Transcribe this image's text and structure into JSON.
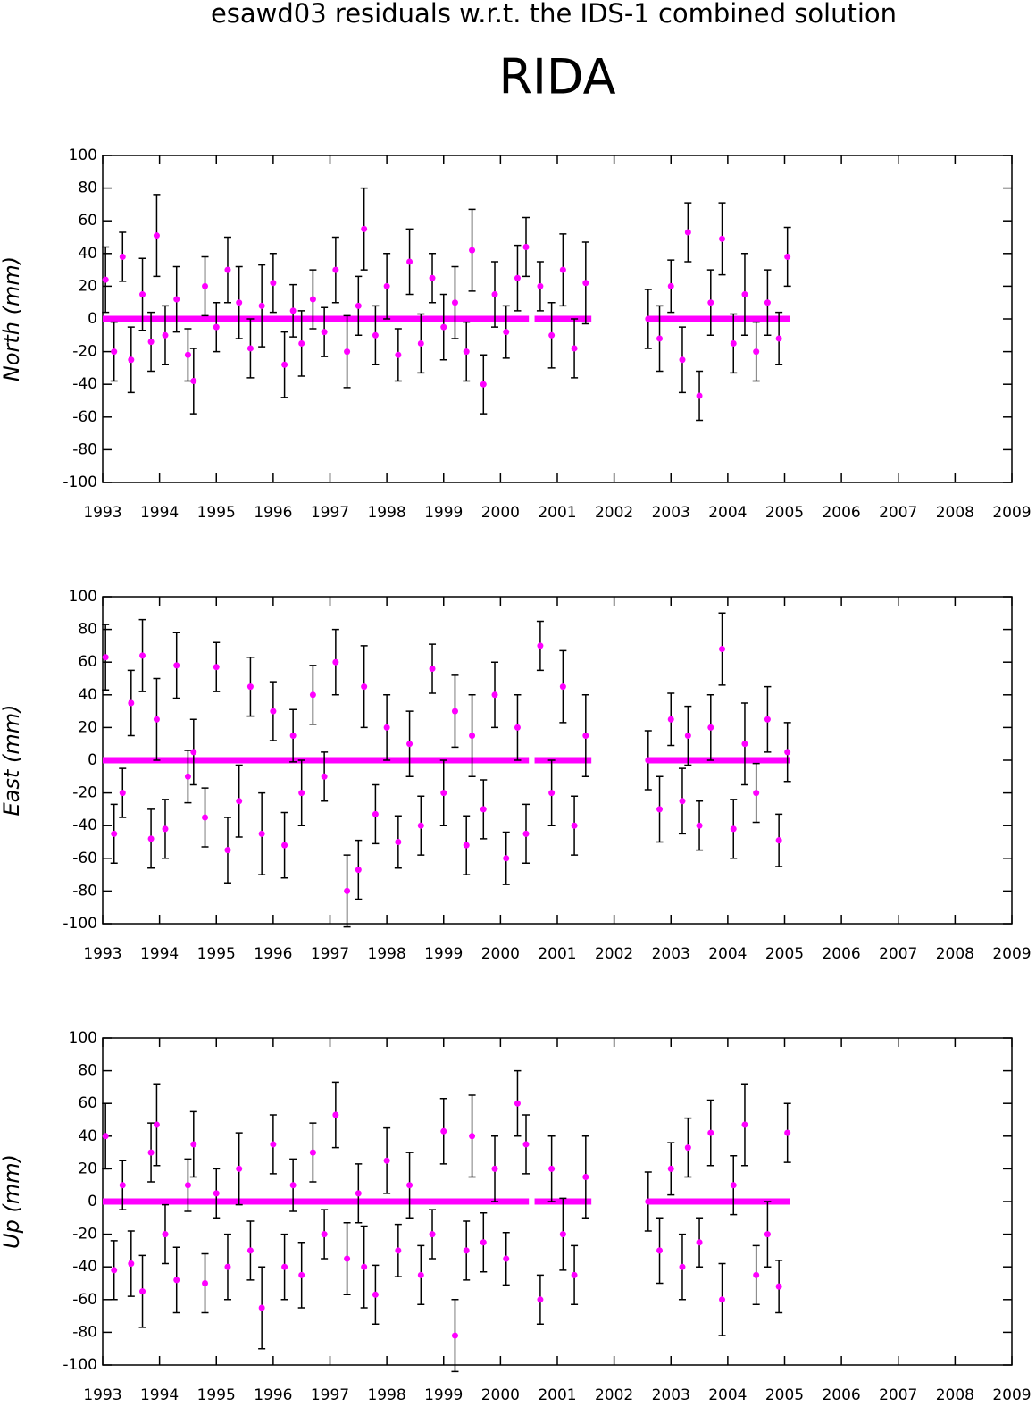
{
  "title": "esawd03 residuals w.r.t. the IDS-1 combined solution",
  "station": "RIDA",
  "chart_data": [
    {
      "type": "scatter",
      "ylabel": "North (mm)",
      "color": "#ff00ff",
      "errorcolor": "#000000",
      "x": [
        1993.05,
        1993.2,
        1993.35,
        1993.5,
        1993.7,
        1993.85,
        1993.95,
        1994.1,
        1994.3,
        1994.5,
        1994.6,
        1994.8,
        1995.0,
        1995.2,
        1995.4,
        1995.6,
        1995.8,
        1996.0,
        1996.2,
        1996.35,
        1996.5,
        1996.7,
        1996.9,
        1997.1,
        1997.3,
        1997.5,
        1997.6,
        1997.8,
        1998.0,
        1998.2,
        1998.4,
        1998.6,
        1998.8,
        1999.0,
        1999.2,
        1999.4,
        1999.5,
        1999.7,
        1999.9,
        2000.1,
        2000.3,
        2000.45,
        2000.7,
        2000.9,
        2001.1,
        2001.3,
        2001.5,
        2002.6,
        2002.8,
        2003.0,
        2003.2,
        2003.3,
        2003.5,
        2003.7,
        2003.9,
        2004.1,
        2004.3,
        2004.5,
        2004.7,
        2004.9,
        2005.05
      ],
      "values": [
        24,
        -20,
        38,
        -25,
        15,
        -14,
        51,
        -10,
        12,
        -22,
        -38,
        20,
        -5,
        30,
        10,
        -18,
        8,
        22,
        -28,
        5,
        -15,
        12,
        -8,
        30,
        -20,
        8,
        55,
        -10,
        20,
        -22,
        35,
        -15,
        25,
        -5,
        10,
        -20,
        42,
        -40,
        15,
        -8,
        25,
        44,
        20,
        -10,
        30,
        -18,
        22,
        0,
        -12,
        20,
        -25,
        53,
        -47,
        10,
        49,
        -15,
        15,
        -20,
        10,
        -12,
        38
      ],
      "errors": [
        20,
        18,
        15,
        20,
        22,
        18,
        25,
        18,
        20,
        16,
        20,
        18,
        15,
        20,
        22,
        18,
        25,
        18,
        20,
        16,
        20,
        18,
        15,
        20,
        22,
        18,
        25,
        18,
        20,
        16,
        20,
        18,
        15,
        20,
        22,
        18,
        25,
        18,
        20,
        16,
        20,
        18,
        15,
        20,
        22,
        18,
        25,
        18,
        20,
        16,
        20,
        18,
        15,
        20,
        22,
        18,
        25,
        18,
        20,
        16,
        18
      ],
      "baseline": {
        "x": [
          1993,
          2000.5,
          null,
          2000.6,
          2001.6,
          null,
          2002.6,
          2005.1
        ],
        "values": [
          0,
          0,
          null,
          0,
          0,
          null,
          0,
          0
        ]
      },
      "xlim": [
        1993,
        2009
      ],
      "xticks": [
        1993,
        1994,
        1995,
        1996,
        1997,
        1998,
        1999,
        2000,
        2001,
        2002,
        2003,
        2004,
        2005,
        2006,
        2007,
        2008,
        2009
      ],
      "ylim": [
        -100,
        100
      ],
      "yticks": [
        -100,
        -80,
        -60,
        -40,
        -20,
        0,
        20,
        40,
        60,
        80,
        100
      ]
    },
    {
      "type": "scatter",
      "ylabel": "East (mm)",
      "color": "#ff00ff",
      "errorcolor": "#000000",
      "x": [
        1993.05,
        1993.2,
        1993.35,
        1993.5,
        1993.7,
        1993.85,
        1993.95,
        1994.1,
        1994.3,
        1994.5,
        1994.6,
        1994.8,
        1995.0,
        1995.2,
        1995.4,
        1995.6,
        1995.8,
        1996.0,
        1996.2,
        1996.35,
        1996.5,
        1996.7,
        1996.9,
        1997.1,
        1997.3,
        1997.5,
        1997.6,
        1997.8,
        1998.0,
        1998.2,
        1998.4,
        1998.6,
        1998.8,
        1999.0,
        1999.2,
        1999.4,
        1999.5,
        1999.7,
        1999.9,
        2000.1,
        2000.3,
        2000.45,
        2000.7,
        2000.9,
        2001.1,
        2001.3,
        2001.5,
        2002.6,
        2002.8,
        2003.0,
        2003.2,
        2003.3,
        2003.5,
        2003.7,
        2003.9,
        2004.1,
        2004.3,
        2004.5,
        2004.7,
        2004.9,
        2005.05
      ],
      "values": [
        63,
        -45,
        -20,
        35,
        64,
        -48,
        25,
        -42,
        58,
        -10,
        5,
        -35,
        57,
        -55,
        -25,
        45,
        -45,
        30,
        -52,
        15,
        -20,
        40,
        -10,
        60,
        -80,
        -67,
        45,
        -33,
        20,
        -50,
        10,
        -40,
        56,
        -20,
        30,
        -52,
        15,
        -30,
        40,
        -60,
        20,
        -45,
        70,
        -20,
        45,
        -40,
        15,
        0,
        -30,
        25,
        -25,
        15,
        -40,
        20,
        68,
        -42,
        10,
        -20,
        25,
        -49,
        5
      ],
      "errors": [
        20,
        18,
        15,
        20,
        22,
        18,
        25,
        18,
        20,
        16,
        20,
        18,
        15,
        20,
        22,
        18,
        25,
        18,
        20,
        16,
        20,
        18,
        15,
        20,
        22,
        18,
        25,
        18,
        20,
        16,
        20,
        18,
        15,
        20,
        22,
        18,
        25,
        18,
        20,
        16,
        20,
        18,
        15,
        20,
        22,
        18,
        25,
        18,
        20,
        16,
        20,
        18,
        15,
        20,
        22,
        18,
        25,
        18,
        20,
        16,
        18
      ],
      "baseline": {
        "x": [
          1993,
          2000.5,
          null,
          2000.6,
          2001.6,
          null,
          2002.6,
          2005.1
        ],
        "values": [
          0,
          0,
          null,
          0,
          0,
          null,
          0,
          0
        ]
      },
      "xlim": [
        1993,
        2009
      ],
      "xticks": [
        1993,
        1994,
        1995,
        1996,
        1997,
        1998,
        1999,
        2000,
        2001,
        2002,
        2003,
        2004,
        2005,
        2006,
        2007,
        2008,
        2009
      ],
      "ylim": [
        -100,
        100
      ],
      "yticks": [
        -100,
        -80,
        -60,
        -40,
        -20,
        0,
        20,
        40,
        60,
        80,
        100
      ]
    },
    {
      "type": "scatter",
      "ylabel": "Up (mm)",
      "color": "#ff00ff",
      "errorcolor": "#000000",
      "x": [
        1993.05,
        1993.2,
        1993.35,
        1993.5,
        1993.7,
        1993.85,
        1993.95,
        1994.1,
        1994.3,
        1994.5,
        1994.6,
        1994.8,
        1995.0,
        1995.2,
        1995.4,
        1995.6,
        1995.8,
        1996.0,
        1996.2,
        1996.35,
        1996.5,
        1996.7,
        1996.9,
        1997.1,
        1997.3,
        1997.5,
        1997.6,
        1997.8,
        1998.0,
        1998.2,
        1998.4,
        1998.6,
        1998.8,
        1999.0,
        1999.2,
        1999.4,
        1999.5,
        1999.7,
        1999.9,
        2000.1,
        2000.3,
        2000.45,
        2000.7,
        2000.9,
        2001.1,
        2001.3,
        2001.5,
        2002.6,
        2002.8,
        2003.0,
        2003.2,
        2003.3,
        2003.5,
        2003.7,
        2003.9,
        2004.1,
        2004.3,
        2004.5,
        2004.7,
        2004.9,
        2005.05
      ],
      "values": [
        40,
        -42,
        10,
        -38,
        -55,
        30,
        47,
        -20,
        -48,
        10,
        35,
        -50,
        5,
        -40,
        20,
        -30,
        -65,
        35,
        -40,
        10,
        -45,
        30,
        -20,
        53,
        -35,
        5,
        -40,
        -57,
        25,
        -30,
        10,
        -45,
        -20,
        43,
        -82,
        -30,
        40,
        -25,
        20,
        -35,
        60,
        35,
        -60,
        20,
        -20,
        -45,
        15,
        0,
        -30,
        20,
        -40,
        33,
        -25,
        42,
        -60,
        10,
        47,
        -45,
        -20,
        -52,
        42
      ],
      "errors": [
        20,
        18,
        15,
        20,
        22,
        18,
        25,
        18,
        20,
        16,
        20,
        18,
        15,
        20,
        22,
        18,
        25,
        18,
        20,
        16,
        20,
        18,
        15,
        20,
        22,
        18,
        25,
        18,
        20,
        16,
        20,
        18,
        15,
        20,
        22,
        18,
        25,
        18,
        20,
        16,
        20,
        18,
        15,
        20,
        22,
        18,
        25,
        18,
        20,
        16,
        20,
        18,
        15,
        20,
        22,
        18,
        25,
        18,
        20,
        16,
        18
      ],
      "baseline": {
        "x": [
          1993,
          2000.5,
          null,
          2000.6,
          2001.6,
          null,
          2002.6,
          2005.1
        ],
        "values": [
          0,
          0,
          null,
          0,
          0,
          null,
          0,
          0
        ]
      },
      "xlim": [
        1993,
        2009
      ],
      "xticks": [
        1993,
        1994,
        1995,
        1996,
        1997,
        1998,
        1999,
        2000,
        2001,
        2002,
        2003,
        2004,
        2005,
        2006,
        2007,
        2008,
        2009
      ],
      "ylim": [
        -100,
        100
      ],
      "yticks": [
        -100,
        -80,
        -60,
        -40,
        -20,
        0,
        20,
        40,
        60,
        80,
        100
      ]
    }
  ]
}
